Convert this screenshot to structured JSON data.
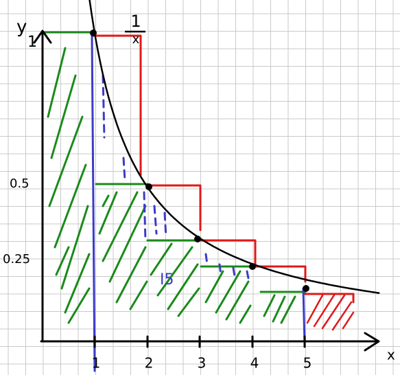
{
  "axes": {
    "y_label": "y",
    "y_top": "1",
    "x_label": "x",
    "y_ticks": [
      "0.5",
      "0.25"
    ],
    "x_ticks": [
      "1",
      "2",
      "3",
      "4",
      "5"
    ]
  },
  "curve": {
    "numerator": "1",
    "denominator": "x"
  },
  "area_label": "I5"
}
